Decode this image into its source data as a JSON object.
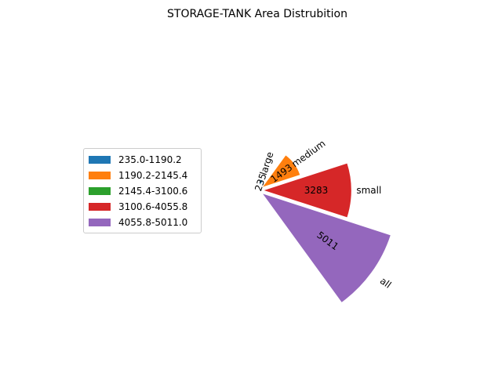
{
  "chart_data": {
    "type": "pie",
    "title": "STORAGE-TANK Area Distrubition",
    "slices": [
      {
        "label": "large",
        "value": 235,
        "value_label": "235",
        "color": "#1f77b4"
      },
      {
        "label": "medium",
        "value": 1493,
        "value_label": "1493",
        "color": "#ff7f0e"
      },
      {
        "label": "small",
        "value": 3283,
        "value_label": "3283",
        "color": "#d62728"
      },
      {
        "label": "all",
        "value": 5011,
        "value_label": "5011",
        "color": "#9467bd"
      }
    ],
    "legend": {
      "placement": "left",
      "entries": [
        {
          "label": "235.0-1190.2",
          "color": "#1f77b4"
        },
        {
          "label": "1190.2-2145.4",
          "color": "#ff7f0e"
        },
        {
          "label": "2145.4-3100.6",
          "color": "#2ca02c"
        },
        {
          "label": "3100.6-4055.8",
          "color": "#d62728"
        },
        {
          "label": "4055.8-5011.0",
          "color": "#9467bd"
        }
      ]
    }
  }
}
